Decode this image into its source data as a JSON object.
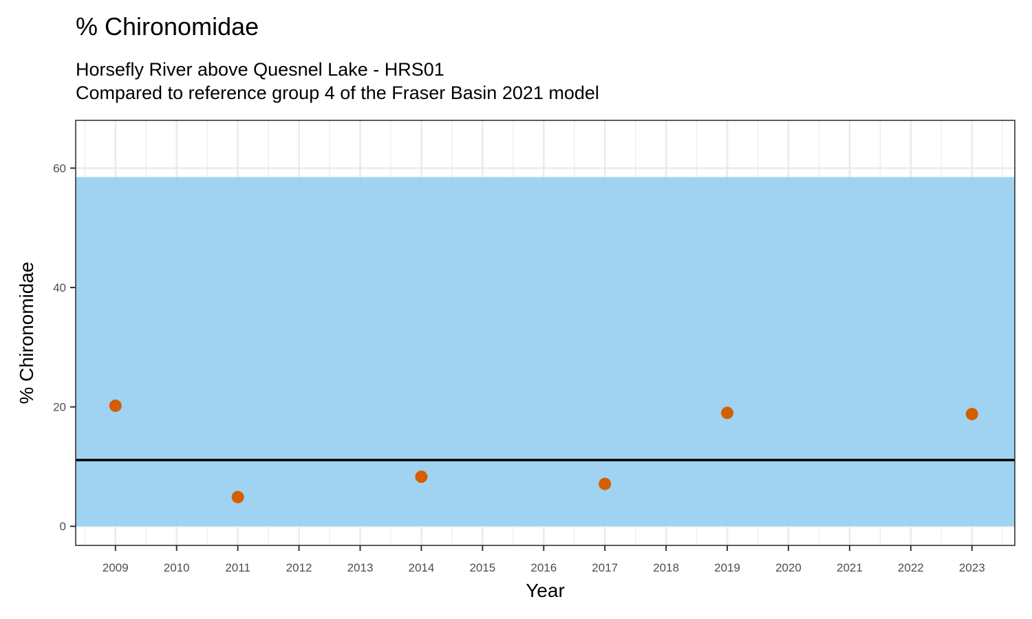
{
  "chart_data": {
    "type": "scatter",
    "title": "% Chironomidae",
    "subtitle_lines": [
      "Horsefly River above Quesnel Lake - HRS01",
      "Compared to reference group 4 of the Fraser Basin 2021 model"
    ],
    "xlabel": "Year",
    "ylabel": "% Chironomidae",
    "x_ticks": [
      2009,
      2010,
      2011,
      2012,
      2013,
      2014,
      2015,
      2016,
      2017,
      2018,
      2019,
      2020,
      2021,
      2022,
      2023
    ],
    "y_ticks": [
      0,
      20,
      40,
      60
    ],
    "xlim": [
      2008.35,
      2023.7
    ],
    "ylim": [
      -3.2,
      68
    ],
    "grid": true,
    "reference_band": {
      "ymin": 0,
      "ymax": 58.5,
      "color": "#9ad1f0"
    },
    "reference_line": {
      "y": 11.1,
      "color": "#000000"
    },
    "point_color": "#d55e00",
    "points": [
      {
        "x": 2009,
        "y": 20.2
      },
      {
        "x": 2011,
        "y": 4.9
      },
      {
        "x": 2014,
        "y": 8.3
      },
      {
        "x": 2017,
        "y": 7.1
      },
      {
        "x": 2019,
        "y": 19.0
      },
      {
        "x": 2023,
        "y": 18.8
      }
    ]
  }
}
